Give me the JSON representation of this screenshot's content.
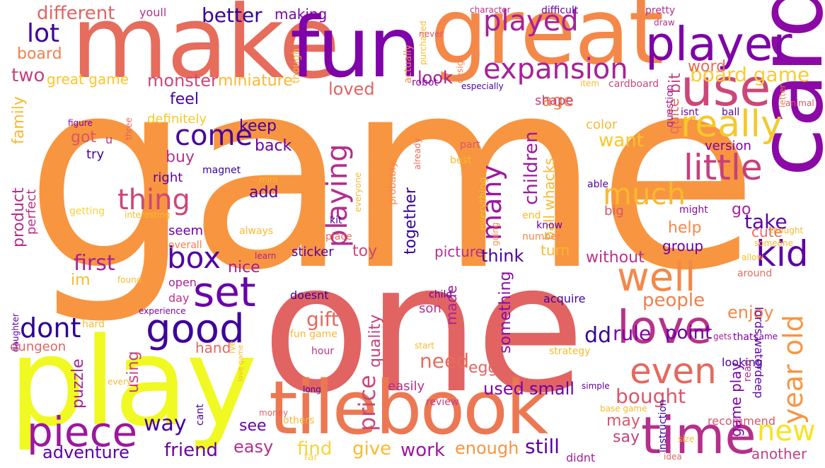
{
  "word_cloud": {
    "words": [
      {
        "text": "game",
        "color": "#f89540"
      },
      {
        "text": "one",
        "color": "#e16462"
      },
      {
        "text": "make",
        "color": "#e66c5c"
      },
      {
        "text": "great",
        "color": "#f48849"
      },
      {
        "text": "fun",
        "color": "#7e03a8"
      },
      {
        "text": "play",
        "color": "#f0f921"
      },
      {
        "text": "card",
        "color": "#8b0aa5"
      },
      {
        "text": "tilebook",
        "color": "#ec7853"
      },
      {
        "text": "player",
        "color": "#7e03a8"
      },
      {
        "text": "use",
        "color": "#cc4778"
      },
      {
        "text": "time",
        "color": "#b52f8c"
      },
      {
        "text": "piece",
        "color": "#9c179e"
      },
      {
        "text": "love",
        "color": "#b83289"
      },
      {
        "text": "good",
        "color": "#3e049c"
      },
      {
        "text": "set",
        "color": "#6a00a8"
      },
      {
        "text": "well",
        "color": "#f48849"
      },
      {
        "text": "really",
        "color": "#f3c92b"
      },
      {
        "text": "little",
        "color": "#c5407e"
      },
      {
        "text": "expansion",
        "color": "#a72197"
      },
      {
        "text": "kid",
        "color": "#5c01a6"
      },
      {
        "text": "even",
        "color": "#e4695e"
      },
      {
        "text": "played",
        "color": "#a72197"
      },
      {
        "text": "lot",
        "color": "#3e049c"
      },
      {
        "text": "dont",
        "color": "#2d0594"
      },
      {
        "text": "box",
        "color": "#5302a3"
      },
      {
        "text": "much",
        "color": "#f9b92e"
      },
      {
        "text": "year old",
        "color": "#f89540"
      },
      {
        "text": "new",
        "color": "#f7e225"
      },
      {
        "text": "come",
        "color": "#46039f"
      },
      {
        "text": "thing",
        "color": "#cc4778"
      },
      {
        "text": "playing",
        "color": "#b52f8c"
      },
      {
        "text": "board game",
        "color": "#f9cb35"
      },
      {
        "text": "better",
        "color": "#350498"
      },
      {
        "text": "different",
        "color": "#e16462"
      },
      {
        "text": "way",
        "color": "#46039f"
      },
      {
        "text": "friend",
        "color": "#6a00a8"
      },
      {
        "text": "adventure",
        "color": "#5c01a6"
      },
      {
        "text": "first",
        "color": "#a72197"
      },
      {
        "text": "many",
        "color": "#9c179e"
      },
      {
        "text": "price",
        "color": "#cc4778"
      },
      {
        "text": "rule",
        "color": "#7e03a8"
      },
      {
        "text": "point",
        "color": "#6a00a8"
      },
      {
        "text": "gift",
        "color": "#e4695e"
      },
      {
        "text": "bought",
        "color": "#d8576b"
      },
      {
        "text": "used",
        "color": "#7e03a8"
      },
      {
        "text": "small",
        "color": "#6a00a8"
      },
      {
        "text": "need",
        "color": "#e66c5c"
      },
      {
        "text": "dd",
        "color": "#350498"
      },
      {
        "text": "take",
        "color": "#5c01a6"
      },
      {
        "text": "people",
        "color": "#f07f4f"
      },
      {
        "text": "enjoy",
        "color": "#f48849"
      },
      {
        "text": "find",
        "color": "#f7d13d"
      },
      {
        "text": "give",
        "color": "#f9b92e"
      },
      {
        "text": "work",
        "color": "#9c179e"
      },
      {
        "text": "enough",
        "color": "#f89540"
      },
      {
        "text": "still",
        "color": "#5c01a6"
      },
      {
        "text": "easy",
        "color": "#b52f8c"
      },
      {
        "text": "see",
        "color": "#6a00a8"
      },
      {
        "text": "say",
        "color": "#c5407e"
      },
      {
        "text": "may",
        "color": "#d8576b"
      },
      {
        "text": "monster",
        "color": "#cc4778"
      },
      {
        "text": "miniature",
        "color": "#f9b92e"
      },
      {
        "text": "two",
        "color": "#c5407e"
      },
      {
        "text": "board",
        "color": "#f07f4f"
      },
      {
        "text": "great game",
        "color": "#fdc527"
      },
      {
        "text": "making",
        "color": "#7e03a8"
      },
      {
        "text": "youll",
        "color": "#b83289"
      },
      {
        "text": "look",
        "color": "#a72197"
      },
      {
        "text": "loved",
        "color": "#e16462"
      },
      {
        "text": "age",
        "color": "#f48849"
      },
      {
        "text": "bit",
        "color": "#c5407e"
      },
      {
        "text": "quite",
        "color": "#e66c5c"
      },
      {
        "text": "word",
        "color": "#e66c5c"
      },
      {
        "text": "feel",
        "color": "#46039f"
      },
      {
        "text": "family",
        "color": "#f9b92e"
      },
      {
        "text": "definitely",
        "color": "#f3c92b"
      },
      {
        "text": "keep",
        "color": "#46039f"
      },
      {
        "text": "back",
        "color": "#6a00a8"
      },
      {
        "text": "got",
        "color": "#d8576b"
      },
      {
        "text": "u",
        "color": "#b83289"
      },
      {
        "text": "try",
        "color": "#3e049c"
      },
      {
        "text": "buy",
        "color": "#b83289"
      },
      {
        "text": "right",
        "color": "#5c01a6"
      },
      {
        "text": "want",
        "color": "#fdc527"
      },
      {
        "text": "shape",
        "color": "#c5407e"
      },
      {
        "text": "color",
        "color": "#f9b92e"
      },
      {
        "text": "children",
        "color": "#9c179e"
      },
      {
        "text": "ball whacks",
        "color": "#f9b92e"
      },
      {
        "text": "version",
        "color": "#7e03a8"
      },
      {
        "text": "cute",
        "color": "#e66c5c"
      },
      {
        "text": "go",
        "color": "#a72197"
      },
      {
        "text": "help",
        "color": "#f48849"
      },
      {
        "text": "group",
        "color": "#6a00a8"
      },
      {
        "text": "turn",
        "color": "#f9b92e"
      },
      {
        "text": "without",
        "color": "#b83289"
      },
      {
        "text": "think",
        "color": "#46039f"
      },
      {
        "text": "product",
        "color": "#b52f8c"
      },
      {
        "text": "perfect",
        "color": "#b83289"
      },
      {
        "text": "add",
        "color": "#5302a3"
      },
      {
        "text": "seem",
        "color": "#6a00a8"
      },
      {
        "text": "nice",
        "color": "#a72197"
      },
      {
        "text": "im",
        "color": "#f9b92e"
      },
      {
        "text": "sticker",
        "color": "#5302a3"
      },
      {
        "text": "toy",
        "color": "#cc4778"
      },
      {
        "text": "picture",
        "color": "#b52f8c"
      },
      {
        "text": "together",
        "color": "#350498"
      },
      {
        "text": "something",
        "color": "#8b0aa5"
      },
      {
        "text": "made",
        "color": "#a72197"
      },
      {
        "text": "quality",
        "color": "#c5407e"
      },
      {
        "text": "using",
        "color": "#c5407e"
      },
      {
        "text": "puzzle",
        "color": "#a72197"
      },
      {
        "text": "hand",
        "color": "#e4695e"
      },
      {
        "text": "egg",
        "color": "#e16462"
      },
      {
        "text": "son",
        "color": "#b52f8c"
      },
      {
        "text": "dungeon",
        "color": "#e16462"
      },
      {
        "text": "easily",
        "color": "#b52f8c"
      },
      {
        "text": "game play",
        "color": "#7e03a8"
      },
      {
        "text": "lords waterdeep",
        "color": "#5c01a6"
      },
      {
        "text": "looking",
        "color": "#46039f"
      },
      {
        "text": "recommend",
        "color": "#d8576b"
      },
      {
        "text": "another",
        "color": "#c5407e"
      },
      {
        "text": "didnt",
        "color": "#a72197"
      },
      {
        "text": "instruction",
        "color": "#350498"
      },
      {
        "text": "idea",
        "color": "#e16462"
      },
      {
        "text": "size",
        "color": "#f9b92e"
      },
      {
        "text": "base game",
        "color": "#f9b92e"
      },
      {
        "text": "simple",
        "color": "#6a00a8"
      },
      {
        "text": "review",
        "color": "#c5407e"
      },
      {
        "text": "strategy",
        "color": "#f9b92e"
      },
      {
        "text": "start",
        "color": "#f9b92e"
      },
      {
        "text": "fun game",
        "color": "#f9b92e"
      },
      {
        "text": "doesnt",
        "color": "#350498"
      },
      {
        "text": "acquire",
        "color": "#46039f"
      },
      {
        "text": "child",
        "color": "#6a00a8"
      },
      {
        "text": "hour",
        "color": "#b83289"
      },
      {
        "text": "day",
        "color": "#b83289"
      },
      {
        "text": "open",
        "color": "#a72197"
      },
      {
        "text": "learn",
        "color": "#a72197"
      },
      {
        "text": "overall",
        "color": "#f07f4f"
      },
      {
        "text": "found",
        "color": "#f9b92e"
      },
      {
        "text": "experience",
        "color": "#7e03a8"
      },
      {
        "text": "daughter",
        "color": "#5c01a6"
      },
      {
        "text": "figure",
        "color": "#7e03a8"
      },
      {
        "text": "magnet",
        "color": "#350498"
      },
      {
        "text": "three",
        "color": "#e16462"
      },
      {
        "text": "mini",
        "color": "#f9b92e"
      },
      {
        "text": "getting",
        "color": "#f7d13d"
      },
      {
        "text": "interesting",
        "color": "#f9b92e"
      },
      {
        "text": "always",
        "color": "#f9b92e"
      },
      {
        "text": "kit",
        "color": "#46039f"
      },
      {
        "text": "place",
        "color": "#e66c5c"
      },
      {
        "text": "best",
        "color": "#f9b92e"
      },
      {
        "text": "part",
        "color": "#d8576b"
      },
      {
        "text": "probably",
        "color": "#f48849"
      },
      {
        "text": "already",
        "color": "#e66c5c"
      },
      {
        "text": "everyone",
        "color": "#f9b92e"
      },
      {
        "text": "everything",
        "color": "#f9b92e"
      },
      {
        "text": "going",
        "color": "#f48849"
      },
      {
        "text": "robot",
        "color": "#8b0aa5"
      },
      {
        "text": "especially",
        "color": "#46039f"
      },
      {
        "text": "actually",
        "color": "#f48849"
      },
      {
        "text": "purchased",
        "color": "#f9b92e"
      },
      {
        "text": "never",
        "color": "#d8576b"
      },
      {
        "text": "though",
        "color": "#f9b92e"
      },
      {
        "text": "character",
        "color": "#b83289"
      },
      {
        "text": "design",
        "color": "#f07f4f"
      },
      {
        "text": "difficult",
        "color": "#6a00a8"
      },
      {
        "text": "pretty",
        "color": "#b52f8c"
      },
      {
        "text": "draw",
        "color": "#b52f8c"
      },
      {
        "text": "item",
        "color": "#f9b92e"
      },
      {
        "text": "cardboard",
        "color": "#cc4778"
      },
      {
        "text": "question",
        "color": "#a72197"
      },
      {
        "text": "isnt",
        "color": "#6a00a8"
      },
      {
        "text": "ball",
        "color": "#5302a3"
      },
      {
        "text": "letter",
        "color": "#f07f4f"
      },
      {
        "text": "animal",
        "color": "#d8576b"
      },
      {
        "text": "able",
        "color": "#5302a3"
      },
      {
        "text": "might",
        "color": "#8b0aa5"
      },
      {
        "text": "big",
        "color": "#d8576b"
      },
      {
        "text": "end",
        "color": "#f9b92e"
      },
      {
        "text": "know",
        "color": "#6a00a8"
      },
      {
        "text": "number",
        "color": "#f48849"
      },
      {
        "text": "thought",
        "color": "#f9b92e"
      },
      {
        "text": "someone",
        "color": "#f9b92e"
      },
      {
        "text": "allow",
        "color": "#f9b92e"
      },
      {
        "text": "around",
        "color": "#e66c5c"
      },
      {
        "text": "thats",
        "color": "#7e03a8"
      },
      {
        "text": "came",
        "color": "#7e03a8"
      },
      {
        "text": "gets",
        "color": "#a72197"
      },
      {
        "text": "money",
        "color": "#e16462"
      },
      {
        "text": "every",
        "color": "#f9b92e"
      },
      {
        "text": "ive",
        "color": "#f9b92e"
      },
      {
        "text": "love game",
        "color": "#f9b92e"
      },
      {
        "text": "long",
        "color": "#5302a3"
      },
      {
        "text": "cant",
        "color": "#46039f"
      },
      {
        "text": "others",
        "color": "#f9b92e"
      },
      {
        "text": "far",
        "color": "#f7d13d"
      },
      {
        "text": "hard",
        "color": "#f9b92e"
      },
      {
        "text": "read",
        "color": "#b83289"
      }
    ]
  }
}
